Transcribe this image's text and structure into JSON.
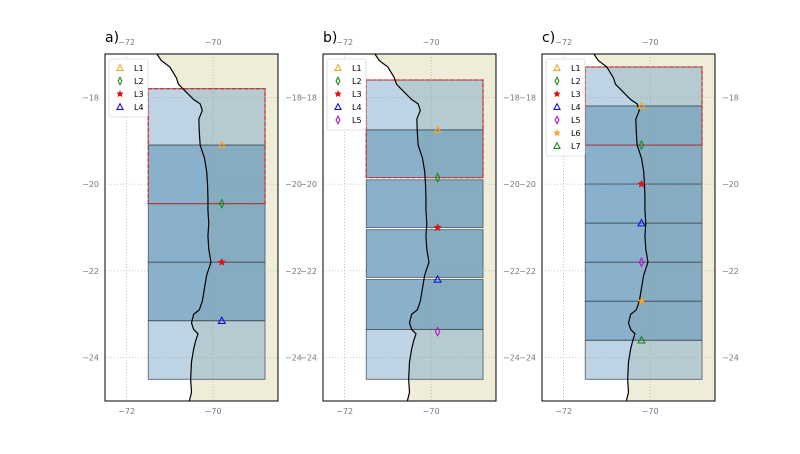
{
  "colors": {
    "land": "#efedd9",
    "ocean": "#bcd6ea",
    "box_fill": "#5d93b8",
    "box_stroke": "#3e4a55",
    "highlight_stroke": "#d9302c",
    "coast": "#000000",
    "grid": "#9a9a9a",
    "tick_label": "#7a7a7a"
  },
  "panels": [
    {
      "label": "a)",
      "lon_labels": [
        "−72",
        "−70"
      ],
      "lat_labels": [
        "−18",
        "−20",
        "−22",
        "−24"
      ],
      "legend": [
        "L1",
        "L2",
        "L3",
        "L4"
      ],
      "boxes": [
        {
          "lat_top": -17.8,
          "lat_bottom": -19.1
        },
        {
          "lat_top": -19.1,
          "lat_bottom": -20.45
        },
        {
          "lat_top": -20.45,
          "lat_bottom": -21.8
        },
        {
          "lat_top": -21.8,
          "lat_bottom": -23.15
        },
        {
          "lat_top": -23.15,
          "lat_bottom": -24.5
        }
      ],
      "highlight": {
        "lat_top": -17.8,
        "lat_bottom": -20.45
      },
      "markers": [
        {
          "label": "L1",
          "lon": -69.8,
          "lat": -19.1,
          "shape": "triangle",
          "color": "#f5a623"
        },
        {
          "label": "L2",
          "lon": -69.8,
          "lat": -20.45,
          "shape": "diamond",
          "color": "#1a8a1a"
        },
        {
          "label": "L3",
          "lon": -69.8,
          "lat": -21.8,
          "shape": "star",
          "color": "#e01010"
        },
        {
          "label": "L4",
          "lon": -69.8,
          "lat": -23.15,
          "shape": "triangle",
          "color": "#1010e0"
        }
      ]
    },
    {
      "label": "b)",
      "lon_labels": [
        "−72",
        "−70"
      ],
      "lat_labels": [
        "−18",
        "−20",
        "−22",
        "−24"
      ],
      "legend": [
        "L1",
        "L2",
        "L3",
        "L4",
        "L5"
      ],
      "boxes": [
        {
          "lat_top": -17.6,
          "lat_bottom": -18.75
        },
        {
          "lat_top": -18.75,
          "lat_bottom": -19.85
        },
        {
          "lat_top": -19.9,
          "lat_bottom": -21.0
        },
        {
          "lat_top": -21.05,
          "lat_bottom": -22.15
        },
        {
          "lat_top": -22.2,
          "lat_bottom": -23.35
        },
        {
          "lat_top": -23.35,
          "lat_bottom": -24.5
        }
      ],
      "highlight": {
        "lat_top": -17.6,
        "lat_bottom": -19.85
      },
      "markers": [
        {
          "label": "L1",
          "lon": -69.85,
          "lat": -18.75,
          "shape": "triangle",
          "color": "#f5a623"
        },
        {
          "label": "L2",
          "lon": -69.85,
          "lat": -19.85,
          "shape": "diamond",
          "color": "#1a8a1a"
        },
        {
          "label": "L3",
          "lon": -69.85,
          "lat": -21.0,
          "shape": "star",
          "color": "#e01010"
        },
        {
          "label": "L4",
          "lon": -69.85,
          "lat": -22.2,
          "shape": "triangle",
          "color": "#1010e0"
        },
        {
          "label": "L5",
          "lon": -69.85,
          "lat": -23.4,
          "shape": "diamond",
          "color": "#c010c0"
        }
      ]
    },
    {
      "label": "c)",
      "lon_labels": [
        "−72",
        "−70"
      ],
      "lat_labels": [
        "−18",
        "−20",
        "−22",
        "−24"
      ],
      "legend": [
        "L1",
        "L2",
        "L3",
        "L4",
        "L5",
        "L6",
        "L7"
      ],
      "boxes": [
        {
          "lat_top": -17.3,
          "lat_bottom": -18.2
        },
        {
          "lat_top": -18.2,
          "lat_bottom": -19.1
        },
        {
          "lat_top": -19.1,
          "lat_bottom": -20.0
        },
        {
          "lat_top": -20.0,
          "lat_bottom": -20.9
        },
        {
          "lat_top": -20.9,
          "lat_bottom": -21.8
        },
        {
          "lat_top": -21.8,
          "lat_bottom": -22.7
        },
        {
          "lat_top": -22.7,
          "lat_bottom": -23.6
        },
        {
          "lat_top": -23.6,
          "lat_bottom": -24.5
        }
      ],
      "highlight": {
        "lat_top": -17.3,
        "lat_bottom": -19.1
      },
      "markers": [
        {
          "label": "L1",
          "lon": -70.2,
          "lat": -18.2,
          "shape": "triangle",
          "color": "#f5a623"
        },
        {
          "label": "L2",
          "lon": -70.2,
          "lat": -19.1,
          "shape": "diamond",
          "color": "#1a8a1a"
        },
        {
          "label": "L3",
          "lon": -70.2,
          "lat": -20.0,
          "shape": "star",
          "color": "#e01010"
        },
        {
          "label": "L4",
          "lon": -70.2,
          "lat": -20.9,
          "shape": "triangle",
          "color": "#1010e0"
        },
        {
          "label": "L5",
          "lon": -70.2,
          "lat": -21.8,
          "shape": "diamond",
          "color": "#c010c0"
        },
        {
          "label": "L6",
          "lon": -70.2,
          "lat": -22.7,
          "shape": "star",
          "color": "#f5a623"
        },
        {
          "label": "L7",
          "lon": -70.2,
          "lat": -23.6,
          "shape": "triangle",
          "color": "#1a8a1a"
        }
      ]
    }
  ]
}
